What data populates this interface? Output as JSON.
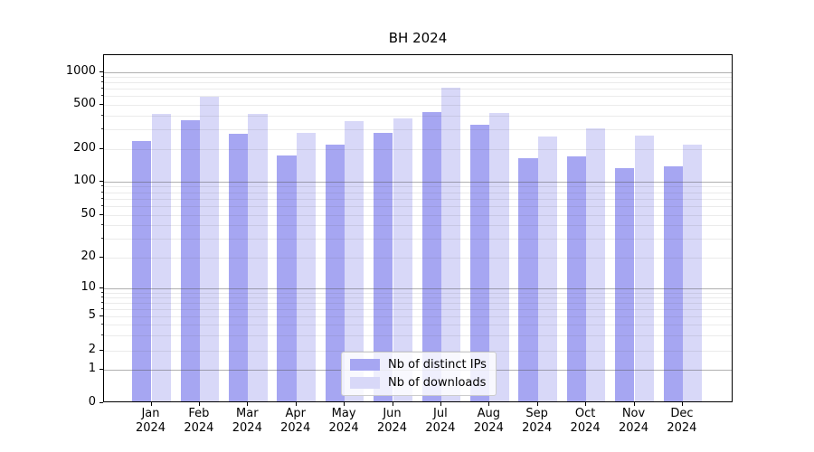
{
  "title": "BH 2024",
  "colors": {
    "distinct_ips": "#a6a6f2",
    "downloads": "#d8d8f8",
    "grid_minor": "#ececec",
    "grid_major": "#b0b0b0",
    "axis": "#000000"
  },
  "legend": {
    "items": [
      {
        "label": "Nb of distinct IPs",
        "series_key": "distinct_ips"
      },
      {
        "label": "Nb of downloads",
        "series_key": "downloads"
      }
    ]
  },
  "chart_data": {
    "type": "bar",
    "title": "BH 2024",
    "categories": [
      "Jan",
      "Feb",
      "Mar",
      "Apr",
      "May",
      "Jun",
      "Jul",
      "Aug",
      "Sep",
      "Oct",
      "Nov",
      "Dec"
    ],
    "category_year": "2024",
    "series": [
      {
        "name": "Nb of distinct IPs",
        "color": "#a6a6f2",
        "values": [
          230,
          350,
          265,
          170,
          210,
          270,
          420,
          320,
          160,
          165,
          130,
          135
        ]
      },
      {
        "name": "Nb of downloads",
        "color": "#d8d8f8",
        "values": [
          405,
          580,
          405,
          270,
          345,
          365,
          700,
          410,
          250,
          295,
          255,
          210
        ]
      }
    ],
    "xlabel": "",
    "ylabel": "",
    "yscale": "symlog",
    "yticks": [
      0,
      1,
      2,
      5,
      10,
      20,
      50,
      100,
      200,
      500,
      1000
    ],
    "ytick_labels": [
      "0",
      "1",
      "2",
      "5",
      "10",
      "20",
      "50",
      "100",
      "200",
      "500",
      "1000"
    ],
    "minor_grid_values": [
      2,
      3,
      4,
      5,
      6,
      7,
      8,
      9,
      20,
      30,
      40,
      50,
      60,
      70,
      80,
      90,
      200,
      300,
      400,
      500,
      600,
      700,
      800,
      900
    ],
    "major_grid_values": [
      1,
      10,
      100,
      1000
    ],
    "ylim": [
      0,
      1417
    ],
    "grid": true,
    "legend_position": "lower center inside"
  }
}
